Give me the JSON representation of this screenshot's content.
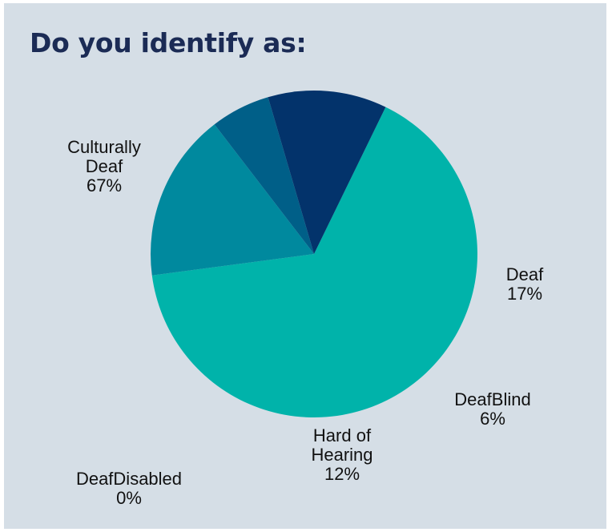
{
  "title": "Do you identify as:",
  "chart_data": {
    "type": "pie",
    "title": "Do you identify as:",
    "slices": [
      {
        "label_lines": [
          "Culturally",
          "Deaf"
        ],
        "value": 67,
        "value_label": "67%",
        "color": "#00b3aa"
      },
      {
        "label_lines": [
          "Deaf"
        ],
        "value": 17,
        "value_label": "17%",
        "color": "#00899e"
      },
      {
        "label_lines": [
          "DeafBlind"
        ],
        "value": 6,
        "value_label": "6%",
        "color": "#005f88"
      },
      {
        "label_lines": [
          "Hard of",
          "Hearing"
        ],
        "value": 12,
        "value_label": "12%",
        "color": "#03336b"
      },
      {
        "label_lines": [
          "DeafDisabled"
        ],
        "value": 0,
        "value_label": "0%",
        "color": "#1b2b55"
      }
    ],
    "legend": "none",
    "labels": "outside"
  },
  "colors": {
    "background": "#d5dee6",
    "title": "#1b2b55",
    "label_text": "#111111"
  }
}
